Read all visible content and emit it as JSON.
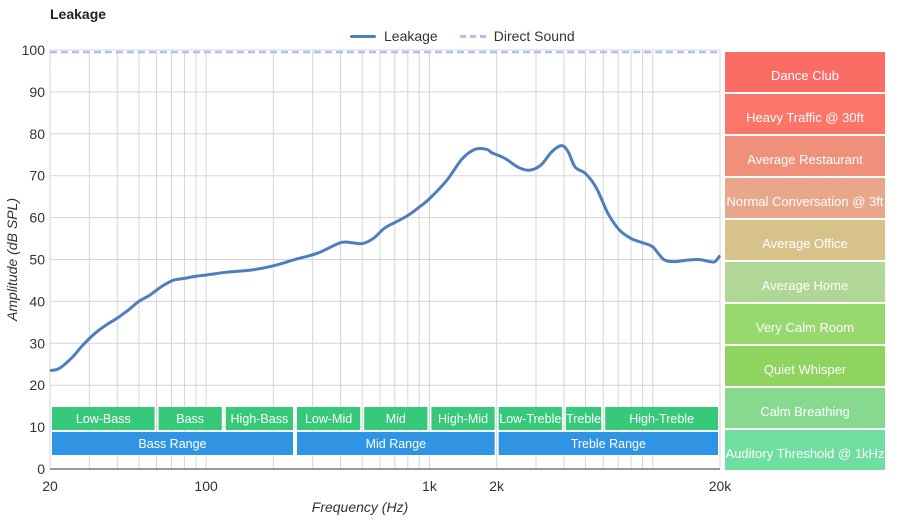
{
  "title": "Leakage",
  "legend": [
    {
      "label": "Leakage",
      "color": "#4d7fbf",
      "style": "solid"
    },
    {
      "label": "Direct Sound",
      "color": "#aec1f5",
      "style": "dashed"
    }
  ],
  "chart_data": {
    "type": "line",
    "title": "Leakage",
    "xlabel": "Frequency (Hz)",
    "ylabel": "Amplitude (dB SPL)",
    "xscale": "log",
    "xlim": [
      20,
      20000
    ],
    "ylim": [
      0,
      100
    ],
    "grid": true,
    "legend_position": "top",
    "x_tick_labels": [
      "20",
      "100",
      "1k",
      "2k",
      "20k"
    ],
    "x_tick_values": [
      20,
      100,
      1000,
      2000,
      20000
    ],
    "y_tick_values": [
      0,
      10,
      20,
      30,
      40,
      50,
      60,
      70,
      80,
      90,
      100
    ],
    "series": [
      {
        "name": "Leakage",
        "color": "#4d7fbf",
        "x": [
          20,
          22,
          25,
          28,
          32,
          36,
          40,
          45,
          50,
          56,
          63,
          71,
          80,
          90,
          100,
          125,
          160,
          200,
          250,
          315,
          400,
          450,
          500,
          560,
          630,
          710,
          800,
          900,
          1000,
          1200,
          1400,
          1600,
          1800,
          1900,
          2000,
          2200,
          2500,
          2800,
          3150,
          3500,
          3800,
          4000,
          4200,
          4500,
          5000,
          5600,
          6300,
          7100,
          8000,
          9000,
          10000,
          11200,
          12500,
          14000,
          16000,
          18000,
          19000,
          20000
        ],
        "values": [
          23.5,
          24,
          26.5,
          29.5,
          32.5,
          34.5,
          36,
          38,
          40,
          41.5,
          43.5,
          45,
          45.5,
          46,
          46.3,
          47,
          47.5,
          48.5,
          50,
          51.5,
          54,
          54,
          53.8,
          55,
          57.5,
          59,
          60.5,
          62.5,
          64.5,
          69,
          74,
          76.3,
          76.3,
          75.5,
          75,
          74,
          72,
          71.3,
          72.5,
          75.5,
          77,
          77,
          75.5,
          72,
          70.5,
          67,
          61,
          57,
          55,
          54,
          53,
          50,
          49.5,
          49.8,
          50,
          49.5,
          49.5,
          51
        ],
        "style": "solid"
      },
      {
        "name": "Direct Sound",
        "color": "#aec1f5",
        "x": [
          20,
          20000
        ],
        "values": [
          99.5,
          99.5
        ],
        "style": "dashed"
      }
    ],
    "freq_bands_top": [
      {
        "label": "Low-Bass",
        "from": 20,
        "to": 60
      },
      {
        "label": "Bass",
        "from": 60,
        "to": 120
      },
      {
        "label": "High-Bass",
        "from": 120,
        "to": 250
      },
      {
        "label": "Mid",
        "from": 500,
        "to": 1000
      },
      {
        "label": "Low-Mid",
        "from": 250,
        "to": 500
      },
      {
        "label": "High-Mid",
        "from": 1000,
        "to": 2000
      },
      {
        "label": "Low-Treble",
        "from": 2000,
        "to": 4000
      },
      {
        "label": "Treble",
        "from": 4000,
        "to": 6000
      },
      {
        "label": "High-Treble",
        "from": 6000,
        "to": 20000
      }
    ],
    "freq_bands_bottom": [
      {
        "label": "Bass Range",
        "from": 20,
        "to": 250
      },
      {
        "label": "Mid Range",
        "from": 250,
        "to": 2000
      },
      {
        "label": "Treble Range",
        "from": 2000,
        "to": 20000
      }
    ],
    "band_color_top": "#36c97a",
    "band_color_bottom": "#2f94e4",
    "reference_levels": [
      {
        "label": "Dance Club",
        "color": "#fb6d64"
      },
      {
        "label": "Heavy Traffic @ 30ft",
        "color": "#fb7568"
      },
      {
        "label": "Average Restaurant",
        "color": "#f0907a"
      },
      {
        "label": "Normal Conversation @ 3ft",
        "color": "#e8a78a"
      },
      {
        "label": "Average Office",
        "color": "#d7c389"
      },
      {
        "label": "Average Home",
        "color": "#b1d796"
      },
      {
        "label": "Very Calm Room",
        "color": "#98d96f"
      },
      {
        "label": "Quiet Whisper",
        "color": "#8ed45e"
      },
      {
        "label": "Calm Breathing",
        "color": "#86d98f"
      },
      {
        "label": "Auditory Threshold @ 1kHz",
        "color": "#6edfa0"
      }
    ]
  }
}
